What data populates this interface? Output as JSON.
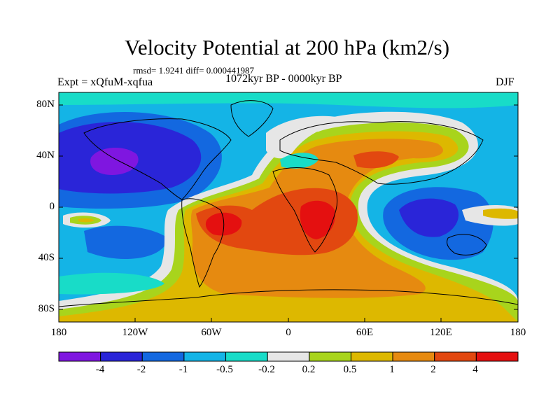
{
  "header": {
    "title": "Velocity Potential at 200 hPa (km2/s)",
    "stats": "rmsd= 1.9241 diff= 0.000441987",
    "experiment": "Expt = xQfuM-xqfua",
    "period": "1072kyr BP - 0000kyr BP",
    "season": "DJF"
  },
  "axes": {
    "lat_ticks": [
      "80N",
      "40N",
      "0",
      "40S",
      "80S"
    ],
    "lon_ticks": [
      "180",
      "120W",
      "60W",
      "0",
      "60E",
      "120E",
      "180"
    ]
  },
  "colorbar": {
    "colors": [
      "#7f16e0",
      "#2a25d8",
      "#1368e0",
      "#14b4e6",
      "#18dcc8",
      "#e6e6e6",
      "#a8d41c",
      "#ddb800",
      "#e68a10",
      "#e24810",
      "#e41010"
    ],
    "labels": [
      "-4",
      "-2",
      "-1",
      "-0.5",
      "-0.2",
      "0.2",
      "0.5",
      "1",
      "2",
      "4"
    ]
  }
}
